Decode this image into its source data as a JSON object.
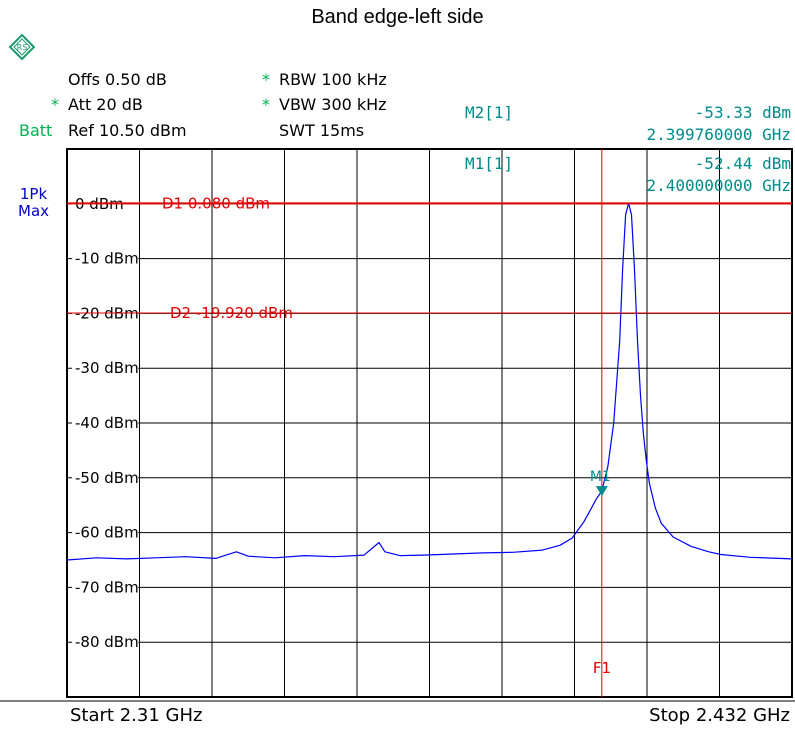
{
  "title": "Band edge-left side",
  "header": {
    "offset": "Offs 0.50 dB",
    "attenuation": "Att  20 dB",
    "reference": "Ref  10.50 dBm",
    "batt": "Batt",
    "rbw": "RBW 100 kHz",
    "vbw": "VBW 300 kHz",
    "swt": "SWT 15ms",
    "star": "*"
  },
  "markers": {
    "m2_label": "M2[1]",
    "m2_level": "-53.33 dBm",
    "m2_freq": "2.399760000 GHz",
    "m1_label": "M1[1]",
    "m1_level": "-52.44 dBm",
    "m1_freq": "2.400000000 GHz"
  },
  "trace": {
    "line1": "1Pk",
    "line2": "Max"
  },
  "footer": {
    "start": "Start 2.31 GHz",
    "stop": "Stop 2.432 GHz"
  },
  "colors": {
    "trace": "#0000ff",
    "limit": "#e00000",
    "marker": "#008b8b",
    "grid": "#000000"
  },
  "chart_data": {
    "type": "line",
    "title": "Band edge-left side",
    "xlim": [
      2.31,
      2.432
    ],
    "ylim": [
      -90,
      10
    ],
    "grid": true,
    "y_ticks": [
      {
        "value": 0,
        "label": "0 dBm"
      },
      {
        "value": -10,
        "label": "-10 dBm"
      },
      {
        "value": -20,
        "label": "-20 dBm"
      },
      {
        "value": -30,
        "label": "-30 dBm"
      },
      {
        "value": -40,
        "label": "-40 dBm"
      },
      {
        "value": -50,
        "label": "-50 dBm"
      },
      {
        "value": -60,
        "label": "-60 dBm"
      },
      {
        "value": -70,
        "label": "-70 dBm"
      },
      {
        "value": -80,
        "label": "-80 dBm"
      }
    ],
    "lines": {
      "d1": {
        "value": 0.08,
        "label": "D1  0.080 dBm"
      },
      "d2": {
        "value": -19.92,
        "label": "D2  -19.920 dBm"
      },
      "f1": {
        "value": 2.4,
        "label": "F1"
      }
    },
    "marker_point": {
      "x": 2.4,
      "y": -52.44,
      "label": "M1"
    },
    "series": [
      {
        "x": [
          2.31,
          2.315,
          2.32,
          2.325,
          2.33,
          2.335,
          2.3385,
          2.3405,
          2.345,
          2.35,
          2.355,
          2.36,
          2.3625,
          2.3635,
          2.366,
          2.37,
          2.375,
          2.38,
          2.385,
          2.39,
          2.393,
          2.395,
          2.397,
          2.398,
          2.399,
          2.4,
          2.401,
          2.402,
          2.403,
          2.4035,
          2.404,
          2.4045,
          2.405,
          2.4055,
          2.406,
          2.4065,
          2.407,
          2.4075,
          2.408,
          2.409,
          2.41,
          2.412,
          2.415,
          2.418,
          2.42,
          2.425,
          2.432
        ],
        "y": [
          -65,
          -64.6,
          -64.8,
          -64.6,
          -64.4,
          -64.7,
          -63.5,
          -64.3,
          -64.6,
          -64.2,
          -64.4,
          -64.1,
          -61.8,
          -63.5,
          -64.2,
          -64.1,
          -63.9,
          -63.7,
          -63.6,
          -63.2,
          -62.3,
          -61,
          -58,
          -56,
          -54,
          -52.4,
          -48,
          -40,
          -25,
          -12,
          -2,
          0.1,
          -2,
          -12,
          -25,
          -35,
          -42,
          -47,
          -51,
          -55.5,
          -58.3,
          -60.8,
          -62.5,
          -63.5,
          -64,
          -64.5,
          -64.8
        ]
      }
    ]
  }
}
